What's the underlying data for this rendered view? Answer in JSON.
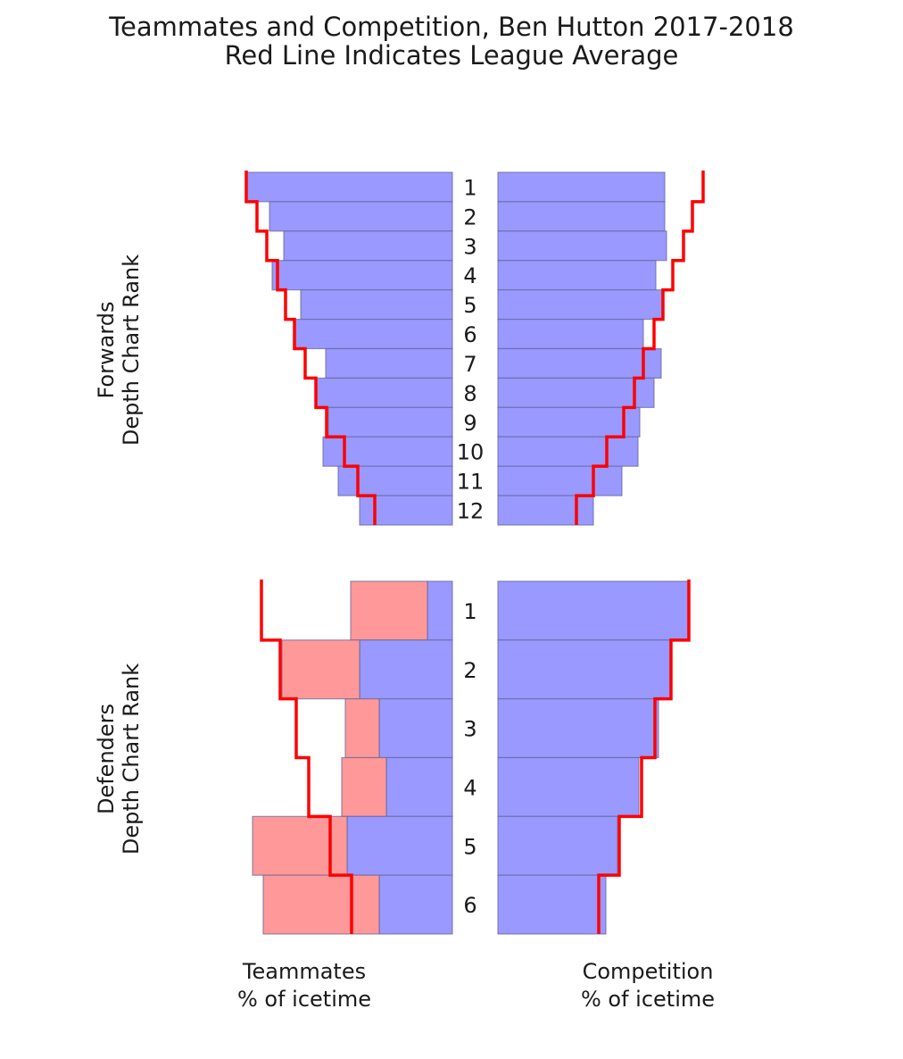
{
  "chart_data": {
    "type": "bar",
    "title": "Teammates and Competition, Ben Hutton 2017-2018",
    "subtitle": "Red Line Indicates League Average",
    "xlabels": {
      "teammates": [
        "Teammates",
        "% of icetime"
      ],
      "competition": [
        "Competition",
        "% of icetime"
      ]
    },
    "colors": {
      "forward_bar": "#9999ff",
      "defender_bar": "#ff9999",
      "league_avg": "#ff0000",
      "bar_edge": "#666699"
    },
    "forwards": {
      "ylabel": [
        "Forwards",
        "Depth Chart Rank"
      ],
      "ranks": [
        "1",
        "2",
        "3",
        "4",
        "5",
        "6",
        "7",
        "8",
        "9",
        "10",
        "11",
        "12"
      ],
      "teammates": [
        23.1,
        20.5,
        18.9,
        20.2,
        17.0,
        17.6,
        14.2,
        15.2,
        13.9,
        14.5,
        12.8,
        10.4
      ],
      "teammates_league_avg": [
        23.1,
        21.9,
        20.8,
        19.6,
        18.7,
        17.7,
        16.5,
        15.3,
        14.1,
        12.1,
        10.6,
        8.7
      ],
      "competition": [
        18.7,
        18.7,
        18.9,
        17.7,
        18.4,
        16.3,
        18.3,
        17.5,
        15.9,
        15.7,
        13.9,
        10.7
      ],
      "competition_league_avg": [
        23.0,
        21.8,
        20.8,
        19.6,
        18.5,
        17.5,
        16.3,
        15.3,
        14.1,
        12.2,
        10.7,
        8.8
      ]
    },
    "defenders": {
      "ylabel": [
        "Defenders",
        "Depth Chart Rank"
      ],
      "ranks": [
        "1",
        "2",
        "3",
        "4",
        "5",
        "6"
      ],
      "teammates_forwards": [
        2.8,
        10.4,
        8.2,
        7.4,
        11.8,
        8.2
      ],
      "teammates_defenders": [
        8.6,
        8.7,
        3.8,
        5.0,
        10.6,
        13.0
      ],
      "teammates_league_avg": [
        21.4,
        19.3,
        17.5,
        16.1,
        13.7,
        11.3
      ],
      "competition": [
        21.3,
        19.3,
        18.0,
        15.8,
        13.4,
        12.1
      ],
      "competition_league_avg": [
        21.4,
        19.4,
        17.6,
        16.1,
        13.6,
        11.3
      ]
    }
  }
}
